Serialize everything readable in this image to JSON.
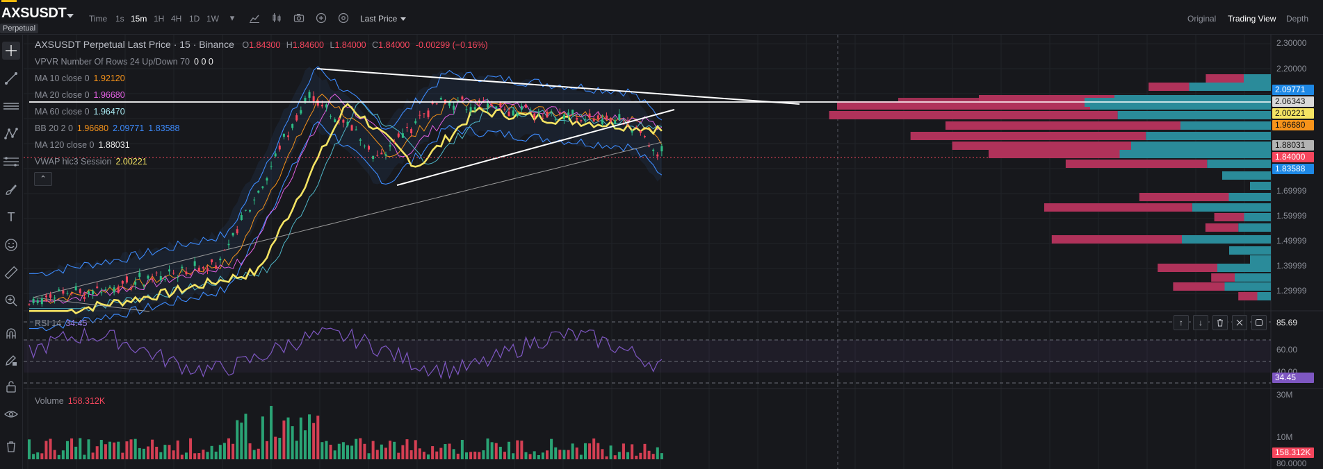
{
  "header": {
    "symbol": "AXSUSDT",
    "badge": "Perpetual",
    "timeframes": [
      "Time",
      "1s",
      "15m",
      "1H",
      "4H",
      "1D",
      "1W"
    ],
    "active_timeframe": "15m",
    "price_type": "Last Price",
    "views": [
      "Original",
      "Trading View",
      "Depth"
    ],
    "active_view": "Trading View"
  },
  "legend": {
    "title": "AXSUSDT Perpetual Last Price · 15 · Binance",
    "ohlc": {
      "o_label": "O",
      "o": "1.84300",
      "h_label": "H",
      "h": "1.84600",
      "l_label": "L",
      "l": "1.84000",
      "c_label": "C",
      "c": "1.84000",
      "change": "-0.00299 (−0.16%)"
    },
    "vpvr": {
      "label": "VPVR Number Of Rows 24 Up/Down 70",
      "values": "0  0  0"
    },
    "ma10": {
      "label": "MA 10 close 0",
      "value": "1.92120"
    },
    "ma20": {
      "label": "MA 20 close 0",
      "value": "1.96680"
    },
    "ma60": {
      "label": "MA 60 close 0",
      "value": "1.96470"
    },
    "bb": {
      "label": "BB 20 2 0",
      "v1": "1.96680",
      "v2": "2.09771",
      "v3": "1.83588"
    },
    "ma120": {
      "label": "MA 120 close 0",
      "value": "1.88031"
    },
    "vwap": {
      "label": "VWAP hlc3 Session",
      "value": "2.00221"
    }
  },
  "price_axis": [
    "2.30000",
    "2.20000",
    "1.69999",
    "1.59999",
    "1.49999",
    "1.39999",
    "1.29999"
  ],
  "price_tags": [
    {
      "value": "2.09771",
      "color": "#1e88e5"
    },
    {
      "value": "2.06343",
      "color": "#d9d9d9"
    },
    {
      "value": "2.00221",
      "color": "#f5e463"
    },
    {
      "value": "1.96680",
      "color": "#f7931a"
    },
    {
      "value": "1.88031",
      "color": "#b3b3b3"
    },
    {
      "value": "1.84000",
      "color": "#f6465d"
    },
    {
      "value": "1.83588",
      "color": "#1e88e5"
    }
  ],
  "rsi": {
    "label": "RSI 14",
    "value": "34.45",
    "axis": [
      "85.69",
      "60.00",
      "40.00"
    ],
    "tag": "34.45"
  },
  "volume": {
    "label": "Volume",
    "value": "158.312K",
    "axis": [
      "30M",
      "10M"
    ],
    "tag": "158.312K"
  },
  "dmi_axis": "80.0000"
}
